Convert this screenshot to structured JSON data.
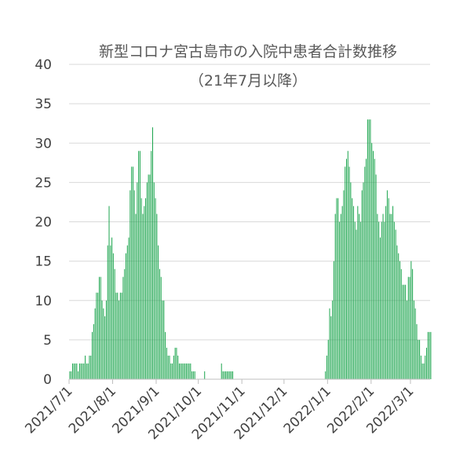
{
  "chart_data": {
    "type": "bar",
    "title": "新型コロナ宮古島市の入院中患者合計数推移",
    "subtitle": "（21年7月以降）",
    "xlabel": "",
    "ylabel": "",
    "ylim": [
      0,
      40
    ],
    "yticks": [
      0,
      5,
      10,
      15,
      20,
      25,
      30,
      35,
      40
    ],
    "grid": true,
    "color": "#17a34a",
    "x_start": "2021-07-01",
    "x_end": "2022-03-14",
    "xticks": [
      {
        "date": "2021-07-01",
        "label": "2021/7/1"
      },
      {
        "date": "2021-08-01",
        "label": "2021/8/1"
      },
      {
        "date": "2021-09-01",
        "label": "2021/9/1"
      },
      {
        "date": "2021-10-01",
        "label": "2021/10/1"
      },
      {
        "date": "2021-11-01",
        "label": "2021/11/1"
      },
      {
        "date": "2021-12-01",
        "label": "2021/12/1"
      },
      {
        "date": "2022-01-01",
        "label": "2022/1/1"
      },
      {
        "date": "2022-02-01",
        "label": "2022/2/1"
      },
      {
        "date": "2022-03-01",
        "label": "2022/3/1"
      }
    ],
    "values": [
      1,
      1,
      2,
      2,
      2,
      2,
      1,
      2,
      2,
      2,
      2,
      3,
      2,
      2,
      3,
      3,
      6,
      7,
      9,
      11,
      11,
      13,
      13,
      10,
      9,
      8,
      10,
      17,
      22,
      17,
      18,
      16,
      14,
      11,
      11,
      10,
      11,
      11,
      13,
      14,
      16,
      17,
      18,
      24,
      27,
      27,
      24,
      21,
      25,
      29,
      29,
      23,
      21,
      22,
      23,
      25,
      26,
      26,
      29,
      32,
      25,
      23,
      21,
      17,
      14,
      13,
      10,
      10,
      6,
      4,
      3,
      3,
      2,
      2,
      3,
      4,
      4,
      3,
      2,
      2,
      2,
      2,
      2,
      2,
      2,
      2,
      2,
      1,
      1,
      1,
      0,
      0,
      0,
      0,
      0,
      0,
      1,
      0,
      0,
      0,
      0,
      0,
      0,
      0,
      0,
      0,
      0,
      0,
      2,
      1,
      1,
      1,
      1,
      1,
      1,
      1,
      1,
      0,
      0,
      0,
      0,
      0,
      0,
      0,
      0,
      0,
      0,
      0,
      0,
      0,
      0,
      0,
      0,
      0,
      0,
      0,
      0,
      0,
      0,
      0,
      0,
      0,
      0,
      0,
      0,
      0,
      0,
      0,
      0,
      0,
      0,
      0,
      0,
      0,
      0,
      0,
      0,
      0,
      0,
      0,
      0,
      0,
      0,
      0,
      0,
      0,
      0,
      0,
      0,
      0,
      0,
      0,
      0,
      0,
      0,
      0,
      0,
      0,
      0,
      0,
      0,
      0,
      1,
      3,
      5,
      9,
      8,
      10,
      15,
      21,
      23,
      23,
      20,
      21,
      22,
      24,
      27,
      28,
      29,
      27,
      25,
      23,
      22,
      20,
      19,
      22,
      21,
      20,
      24,
      25,
      27,
      28,
      33,
      33,
      33,
      30,
      29,
      28,
      26,
      21,
      20,
      18,
      20,
      21,
      20,
      22,
      24,
      23,
      21,
      21,
      22,
      20,
      19,
      17,
      16,
      15,
      14,
      12,
      12,
      12,
      10,
      13,
      13,
      15,
      14,
      10,
      9,
      7,
      5,
      5,
      3,
      2,
      2,
      3,
      4,
      6,
      6,
      6
    ]
  }
}
